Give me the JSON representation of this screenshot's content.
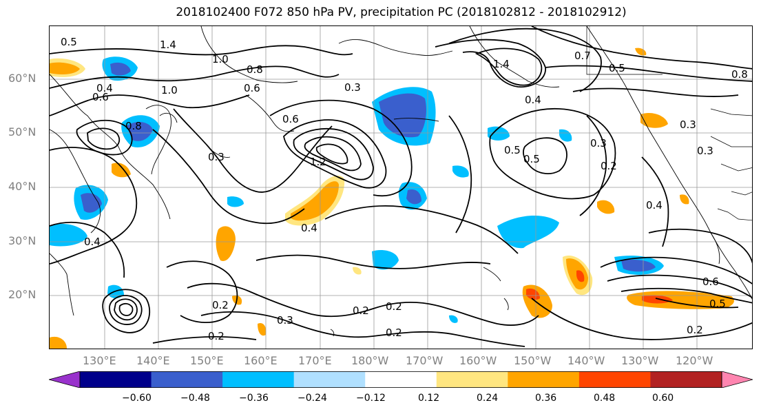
{
  "title": "2018102400 F072 850 hPa PV, precipitation PC (2018102812 - 2018102912)",
  "axes": {
    "lat_labels": [
      "60°N",
      "50°N",
      "40°N",
      "30°N",
      "20°N"
    ],
    "lon_labels": [
      "130°E",
      "140°E",
      "150°E",
      "160°E",
      "170°E",
      "180°W",
      "170°W",
      "160°W",
      "150°W",
      "140°W",
      "130°W",
      "120°W"
    ]
  },
  "colorbar": {
    "ticks": [
      "−0.60",
      "−0.48",
      "−0.36",
      "−0.24",
      "−0.12",
      "0.12",
      "0.24",
      "0.36",
      "0.48",
      "0.60"
    ],
    "colors": [
      "#9932cc",
      "#00008b",
      "#3a5fcd",
      "#00bfff",
      "#b0e0ff",
      "#ffffff",
      "#ffe680",
      "#ffa500",
      "#ff4500",
      "#b22222",
      "#ff85b0"
    ]
  },
  "contour_labels": [
    "1.4",
    "1.0",
    "0.5",
    "0.4",
    "0.6",
    "0.8",
    "1.0",
    "0.3",
    "1.2",
    "1.4",
    "0.7",
    "0.5",
    "0.8",
    "0.8",
    "0.6",
    "0.6",
    "0.3",
    "0.4",
    "0.4",
    "0.5",
    "0.3",
    "0.2",
    "0.3",
    "0.5",
    "0.4",
    "0.2",
    "0.3",
    "0.2",
    "0.2",
    "0.2",
    "0.4",
    "0.6",
    "0.5",
    "0.2",
    "0.3",
    "0.2"
  ],
  "chart_data": {
    "type": "map",
    "title": "2018102400 F072 850 hPa PV, precipitation PC (2018102812 - 2018102912)",
    "fields": [
      "850 hPa PV (contours)",
      "precipitation PC (shaded)"
    ],
    "lat_range": [
      "10°N",
      "70°N"
    ],
    "lon_range": [
      "120°E",
      "110°W"
    ],
    "colorbar_levels": [
      -0.6,
      -0.48,
      -0.36,
      -0.24,
      -0.12,
      0.12,
      0.24,
      0.36,
      0.48,
      0.6
    ],
    "colorbar_extend": "both"
  }
}
